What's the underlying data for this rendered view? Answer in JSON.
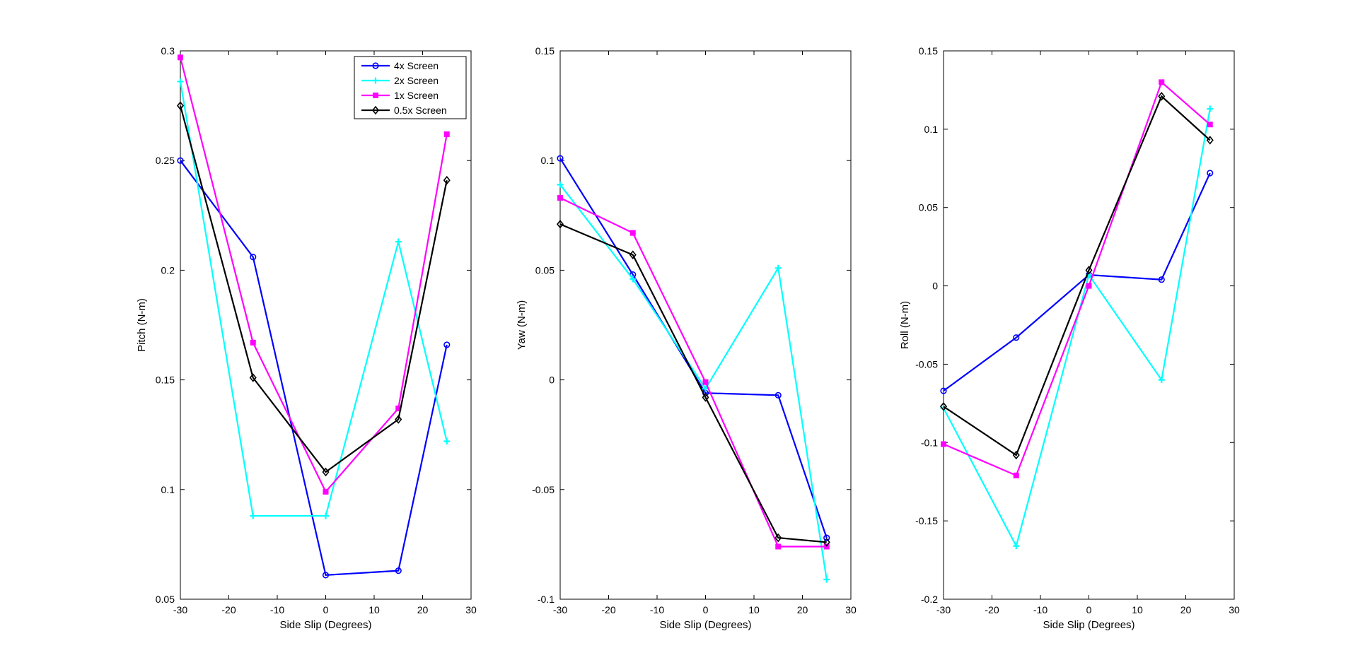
{
  "chart_data": [
    {
      "type": "line",
      "title": "",
      "xlabel": "Side Slip (Degrees)",
      "ylabel": "Pitch (N-m)",
      "xlim": [
        -30,
        30
      ],
      "ylim": [
        0.05,
        0.3
      ],
      "xticks": [
        -30,
        -20,
        -10,
        0,
        10,
        20,
        30
      ],
      "xtick_labels": [
        "-30",
        "-20",
        "-10",
        "0",
        "10",
        "20",
        "30"
      ],
      "yticks": [
        0.05,
        0.1,
        0.15,
        0.2,
        0.25,
        0.3
      ],
      "ytick_labels": [
        "0.05",
        "0.1",
        "0.15",
        "0.2",
        "0.25",
        "0.3"
      ],
      "x": [
        -30,
        -15,
        0,
        15,
        25
      ],
      "grid": false,
      "legend": "top-right",
      "series": [
        {
          "name": "4x Screen",
          "values": [
            0.25,
            0.206,
            0.061,
            0.063,
            0.166
          ]
        },
        {
          "name": "2x Screen",
          "values": [
            0.286,
            0.088,
            0.088,
            0.213,
            0.122
          ]
        },
        {
          "name": "1x Screen",
          "values": [
            0.297,
            0.167,
            0.099,
            0.137,
            0.262
          ]
        },
        {
          "name": "0.5x Screen",
          "values": [
            0.275,
            0.151,
            0.108,
            0.132,
            0.241
          ]
        }
      ]
    },
    {
      "type": "line",
      "title": "",
      "xlabel": "Side Slip (Degrees)",
      "ylabel": "Yaw (N-m)",
      "xlim": [
        -30,
        30
      ],
      "ylim": [
        -0.1,
        0.15
      ],
      "xticks": [
        -30,
        -20,
        -10,
        0,
        10,
        20,
        30
      ],
      "xtick_labels": [
        "-30",
        "-20",
        "-10",
        "0",
        "10",
        "20",
        "30"
      ],
      "yticks": [
        -0.1,
        -0.05,
        0,
        0.05,
        0.1,
        0.15
      ],
      "ytick_labels": [
        "-0.1",
        "-0.05",
        "0",
        "0.05",
        "0.1",
        "0.15"
      ],
      "x": [
        -30,
        -15,
        0,
        15,
        25
      ],
      "grid": false,
      "series": [
        {
          "name": "4x Screen",
          "values": [
            0.101,
            0.048,
            -0.006,
            -0.007,
            -0.072
          ]
        },
        {
          "name": "2x Screen",
          "values": [
            0.089,
            0.046,
            -0.004,
            0.051,
            -0.091
          ]
        },
        {
          "name": "1x Screen",
          "values": [
            0.083,
            0.067,
            -0.001,
            -0.076,
            -0.076
          ]
        },
        {
          "name": "0.5x Screen",
          "values": [
            0.071,
            0.057,
            -0.008,
            -0.072,
            -0.074
          ]
        }
      ]
    },
    {
      "type": "line",
      "title": "",
      "xlabel": "Side Slip (Degrees)",
      "ylabel": "Roll (N-m)",
      "xlim": [
        -30,
        30
      ],
      "ylim": [
        -0.2,
        0.15
      ],
      "xticks": [
        -30,
        -20,
        -10,
        0,
        10,
        20,
        30
      ],
      "xtick_labels": [
        "-30",
        "-20",
        "-10",
        "0",
        "10",
        "20",
        "30"
      ],
      "yticks": [
        -0.2,
        -0.15,
        -0.1,
        -0.05,
        0,
        0.05,
        0.1,
        0.15
      ],
      "ytick_labels": [
        "-0.2",
        "-0.15",
        "-0.1",
        "-0.05",
        "0",
        "0.05",
        "0.1",
        "0.15"
      ],
      "x": [
        -30,
        -15,
        0,
        15,
        25
      ],
      "grid": false,
      "series": [
        {
          "name": "4x Screen",
          "values": [
            -0.067,
            -0.033,
            0.007,
            0.004,
            0.072
          ]
        },
        {
          "name": "2x Screen",
          "values": [
            -0.078,
            -0.166,
            0.007,
            -0.06,
            0.113
          ]
        },
        {
          "name": "1x Screen",
          "values": [
            -0.101,
            -0.121,
            0.0,
            0.13,
            0.103
          ]
        },
        {
          "name": "0.5x Screen",
          "values": [
            -0.077,
            -0.108,
            0.01,
            0.121,
            0.093
          ]
        }
      ]
    }
  ],
  "series_styles": [
    {
      "color": "#0000ff",
      "marker": "circle"
    },
    {
      "color": "#00ffff",
      "marker": "plus"
    },
    {
      "color": "#ff00ff",
      "marker": "square"
    },
    {
      "color": "#000000",
      "marker": "diamond"
    }
  ]
}
